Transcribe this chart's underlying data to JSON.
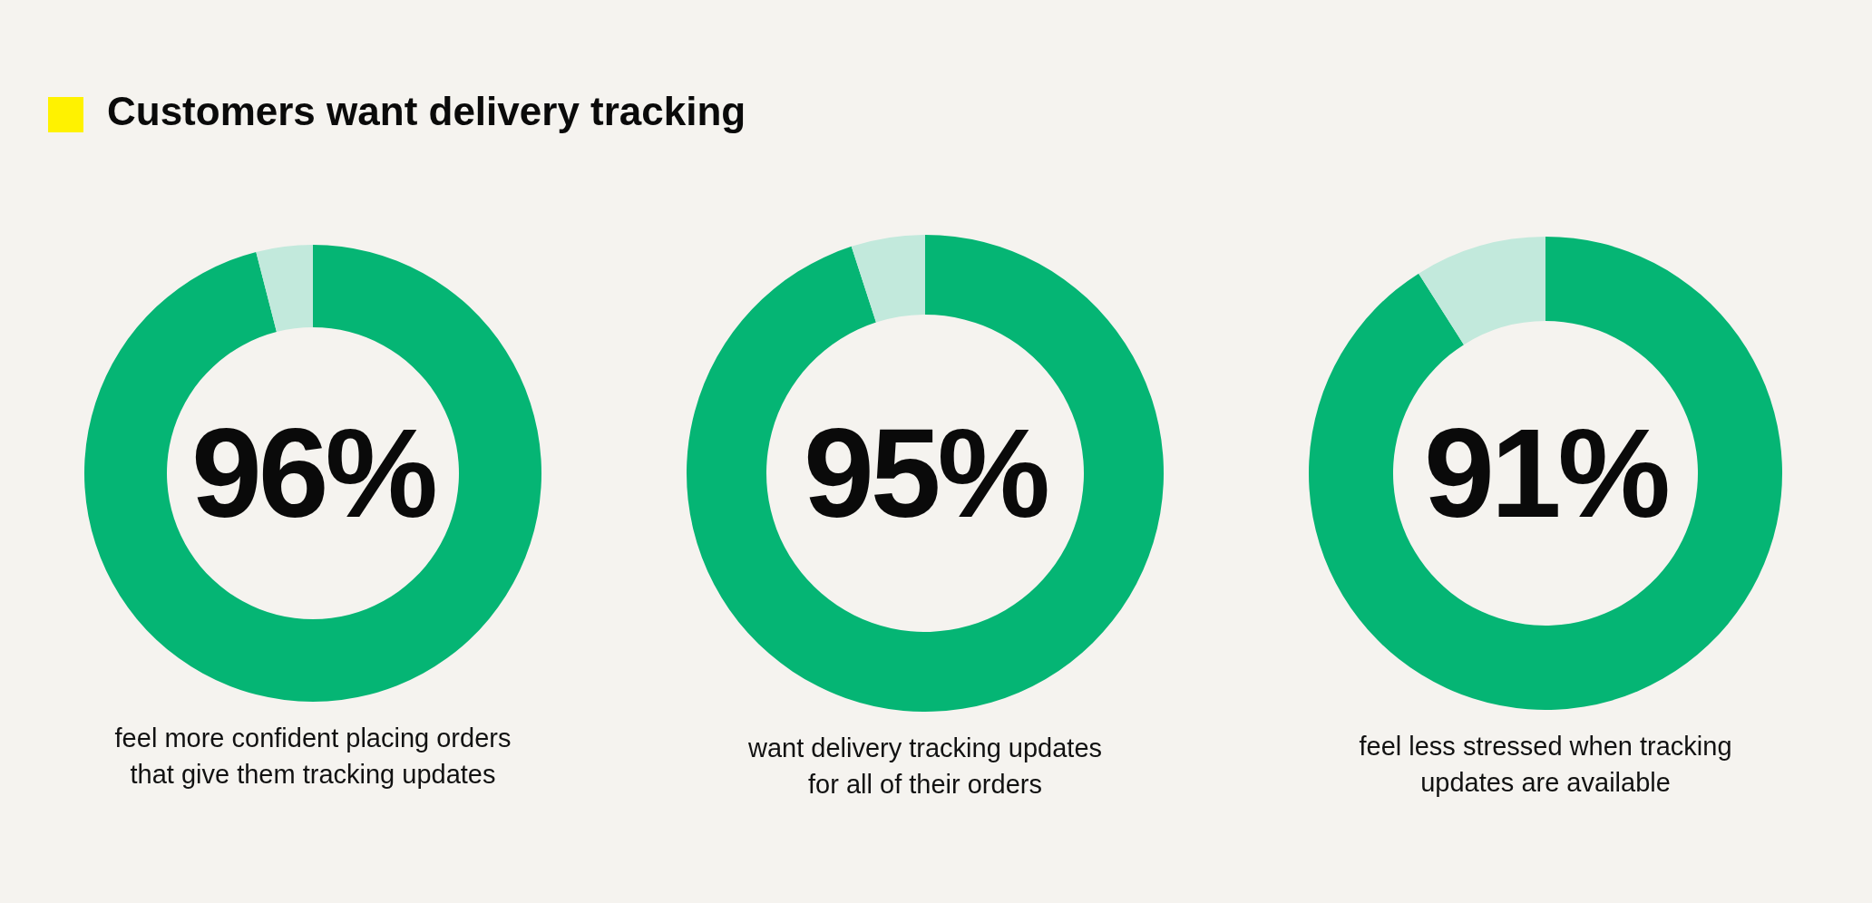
{
  "chart_data": [
    {
      "type": "donut",
      "title": "Customers want delivery tracking",
      "categories": [
        null,
        null
      ],
      "values": [
        96,
        4
      ],
      "colors": [
        "#05b574",
        "#c2e9dc"
      ],
      "value_labels": [
        "96%",
        null
      ],
      "annotations": [
        "feel more confident placing orders\nthat give them tracking updates"
      ]
    },
    {
      "type": "donut",
      "categories": [
        null,
        null
      ],
      "values": [
        95,
        5
      ],
      "colors": [
        "#05b574",
        "#c2e9dc"
      ],
      "value_labels": [
        "95%",
        null
      ],
      "annotations": [
        "want delivery tracking updates\nfor all of their orders"
      ]
    },
    {
      "type": "donut",
      "categories": [
        null,
        null
      ],
      "values": [
        91,
        9
      ],
      "colors": [
        "#05b574",
        "#c2e9dc"
      ],
      "value_labels": [
        "91%",
        null
      ],
      "annotations": [
        "feel less stressed when tracking\nupdates are available"
      ]
    }
  ]
}
